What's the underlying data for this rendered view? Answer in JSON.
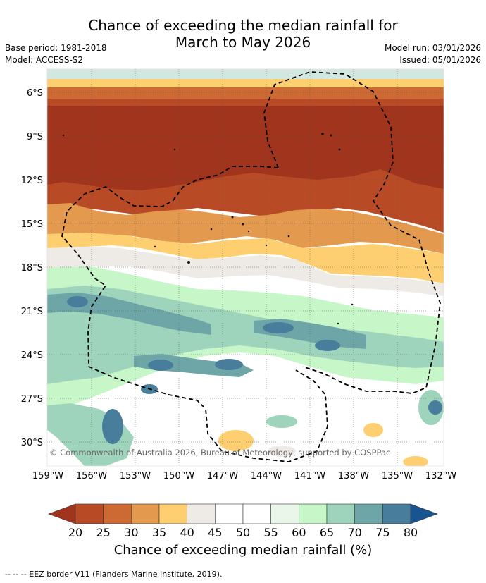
{
  "title": {
    "line1": "Chance of exceeding the median rainfall for",
    "line2": "March to May 2026"
  },
  "meta": {
    "base_period": "Base period: 1981-2018",
    "model": "Model: ACCESS-S2",
    "model_run": "Model run: 03/01/2026",
    "issued": "Issued: 05/01/2026"
  },
  "map": {
    "lat_labels": [
      "6°S",
      "9°S",
      "12°S",
      "15°S",
      "18°S",
      "21°S",
      "24°S",
      "27°S",
      "30°S"
    ],
    "lon_labels": [
      "159°W",
      "156°W",
      "153°W",
      "150°W",
      "147°W",
      "144°W",
      "141°W",
      "138°W",
      "135°W",
      "132°W"
    ],
    "copyright": "© Commonwealth of Australia 2026, Bureau of Meteorology, supported by COSPPac"
  },
  "colorbar": {
    "labels": [
      "20",
      "25",
      "30",
      "35",
      "40",
      "45",
      "50",
      "55",
      "60",
      "65",
      "70",
      "75",
      "80"
    ],
    "colors": [
      "#a0341c",
      "#b84a26",
      "#cd6a33",
      "#e39a4f",
      "#fdcf70",
      "#eeeae5",
      "#ffffff",
      "#ffffff",
      "#eaf6ea",
      "#c7f7c9",
      "#9ed4bb",
      "#6ea6a8",
      "#487e9c",
      "#175490"
    ],
    "title": "Chance of exceeding median rainfall (%)"
  },
  "footer": "--  --  -- EEZ border V11 (Flanders Marine Institute, 2019)."
}
